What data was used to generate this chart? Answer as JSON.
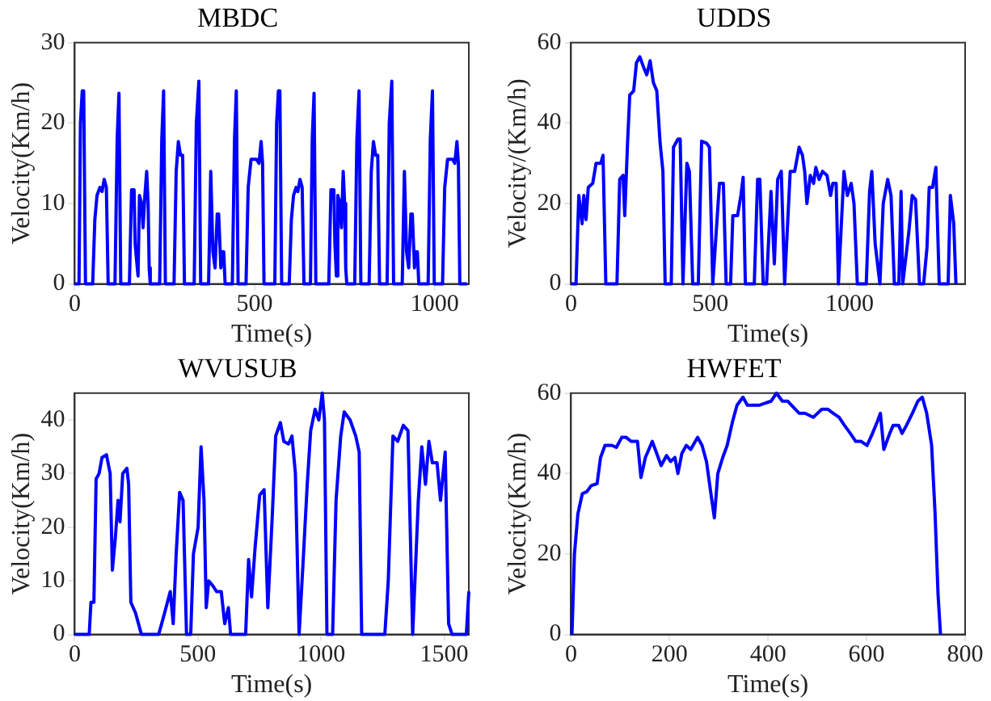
{
  "chart_data": [
    {
      "type": "line",
      "title": "MBDC",
      "xlabel": "Time(s)",
      "ylabel": "Velocity(Km/h)",
      "xlim": [
        0,
        1095
      ],
      "xticks": [
        0,
        500,
        1000
      ],
      "ylim": [
        0,
        30
      ],
      "yticks": [
        0,
        10,
        20,
        30
      ],
      "series": [
        {
          "color": "#0000ff",
          "x": [
            0,
            12,
            16,
            21,
            25,
            30,
            50,
            56,
            62,
            70,
            76,
            82,
            88,
            93,
            112,
            118,
            123,
            128,
            152,
            158,
            165,
            168,
            172,
            176,
            180,
            186,
            190,
            195,
            200,
            204,
            207,
            210,
            236,
            242,
            247,
            252,
            276,
            282,
            288,
            294,
            300,
            305,
            332,
            338,
            345,
            350,
            372,
            378,
            384,
            390,
            396,
            400,
            406,
            410,
            414,
            418,
            438,
            444,
            449,
            454,
            476,
            482,
            490,
            505,
            512,
            518,
            522,
            526,
            556,
            561,
            566,
            570,
            575,
            596,
            602,
            608,
            615,
            620,
            626,
            632,
            637,
            655,
            660,
            665,
            670,
            706,
            712,
            720,
            723,
            727,
            731,
            737,
            741,
            746,
            750,
            753,
            756,
            778,
            784,
            790,
            795,
            818,
            824,
            830,
            836,
            842,
            847,
            868,
            874,
            881,
            886,
            910,
            916,
            922,
            928,
            934,
            938,
            944,
            948,
            952,
            956,
            982,
            988,
            994,
            999,
            1022,
            1028,
            1036,
            1050,
            1056,
            1062,
            1066,
            1070,
            1090
          ],
          "values": [
            0,
            0,
            20,
            24,
            24,
            0,
            0,
            8,
            11,
            12,
            11.5,
            13,
            12,
            0,
            0,
            18,
            23.7,
            0,
            0,
            11.7,
            11.7,
            5,
            3,
            1,
            11,
            10,
            7,
            11,
            14,
            10,
            2,
            0,
            0,
            18,
            24,
            0,
            0,
            14,
            17.7,
            16,
            16,
            0,
            0,
            20,
            25.2,
            0,
            0,
            14,
            4,
            2,
            8.7,
            8.7,
            2,
            4,
            4,
            0,
            0,
            18,
            24,
            0,
            0,
            12,
            15.5,
            15.5,
            15,
            17.7,
            15,
            0,
            0,
            20,
            24,
            24,
            0,
            0,
            8,
            11,
            12,
            11.5,
            13,
            12,
            0,
            0,
            18,
            23.7,
            0,
            0,
            11.7,
            11.7,
            5,
            1,
            11,
            10,
            7,
            14,
            10,
            2,
            0,
            0,
            18,
            24,
            0,
            0,
            14,
            17.7,
            16,
            16,
            0,
            0,
            20,
            25.2,
            0,
            0,
            14,
            4,
            2,
            8.7,
            8.7,
            2,
            4,
            4,
            0,
            0,
            18,
            24,
            0,
            0,
            12,
            15.5,
            15.5,
            15,
            17.7,
            15,
            0,
            0
          ]
        }
      ]
    },
    {
      "type": "line",
      "title": "UDDS",
      "xlabel": "Time(s)",
      "ylabel": "Velocity/(Km/h)",
      "xlim": [
        0,
        1415
      ],
      "xticks": [
        0,
        500,
        1000
      ],
      "ylim": [
        0,
        60
      ],
      "yticks": [
        0,
        20,
        40,
        60
      ],
      "series": [
        {
          "color": "#0000ff",
          "x": [
            0,
            18,
            28,
            40,
            46,
            54,
            62,
            78,
            90,
            107,
            115,
            125,
            165,
            175,
            187,
            193,
            203,
            211,
            225,
            235,
            247,
            260,
            272,
            284,
            296,
            308,
            320,
            330,
            338,
            360,
            368,
            384,
            392,
            402,
            416,
            425,
            437,
            457,
            469,
            487,
            497,
            509,
            533,
            547,
            557,
            573,
            581,
            598,
            610,
            618,
            626,
            658,
            670,
            678,
            690,
            702,
            718,
            730,
            742,
            755,
            767,
            787,
            803,
            819,
            831,
            839,
            847,
            859,
            871,
            879,
            891,
            903,
            919,
            932,
            940,
            952,
            960,
            980,
            992,
            1006,
            1016,
            1028,
            1060,
            1072,
            1080,
            1092,
            1109,
            1121,
            1137,
            1149,
            1161,
            1177,
            1185,
            1191,
            1213,
            1225,
            1237,
            1251,
            1266,
            1278,
            1286,
            1298,
            1310,
            1322,
            1354,
            1362,
            1374,
            1382
          ],
          "values": [
            0,
            0,
            22,
            15,
            22,
            16,
            24,
            25,
            30,
            30,
            32,
            0,
            0,
            26,
            27,
            17,
            35,
            47,
            48,
            55,
            56.5,
            54,
            52,
            55.5,
            50,
            48,
            35,
            28,
            0,
            0,
            34,
            36,
            36,
            0,
            30,
            28,
            0,
            0,
            35.5,
            35,
            34,
            0,
            25,
            25,
            0,
            0,
            17,
            17,
            22,
            26.5,
            0,
            0,
            26,
            26,
            0,
            0,
            23,
            5,
            26,
            28,
            0,
            28,
            28,
            34,
            32,
            28,
            20,
            27,
            25,
            29,
            26,
            28,
            27,
            22,
            25,
            25,
            0,
            28,
            22,
            25,
            20,
            0,
            0,
            23,
            28,
            10,
            0,
            20,
            26,
            22,
            0,
            0,
            23,
            0,
            13,
            22,
            21,
            0,
            0,
            9,
            24,
            24,
            29,
            0,
            0,
            22,
            15,
            0
          ]
        }
      ]
    },
    {
      "type": "line",
      "title": "WVUSUB",
      "xlabel": "Time(s)",
      "ylabel": "Velocity(Km/h)",
      "xlim": [
        0,
        1600
      ],
      "xticks": [
        0,
        500,
        1000,
        1500
      ],
      "ylim": [
        0,
        45
      ],
      "yticks": [
        0,
        10,
        20,
        30,
        40
      ],
      "series": [
        {
          "color": "#0000ff",
          "x": [
            0,
            59,
            66,
            78,
            87,
            99,
            111,
            129,
            144,
            153,
            165,
            176,
            184,
            195,
            212,
            219,
            228,
            247,
            271,
            341,
            365,
            388,
            400,
            412,
            426,
            440,
            454,
            471,
            482,
            501,
            513,
            525,
            534,
            544,
            562,
            576,
            595,
            609,
            624,
            633,
            694,
            706,
            718,
            732,
            751,
            769,
            784,
            802,
            816,
            835,
            849,
            868,
            882,
            896,
            911,
            929,
            944,
            958,
            976,
            991,
            1005,
            1014,
            1024,
            1047,
            1061,
            1080,
            1094,
            1118,
            1141,
            1155,
            1165,
            1259,
            1273,
            1292,
            1311,
            1334,
            1353,
            1372,
            1395,
            1409,
            1424,
            1438,
            1452,
            1471,
            1485,
            1504,
            1518,
            1532,
            1590,
            1600
          ],
          "values": [
            0,
            0,
            6,
            6,
            29,
            30,
            33,
            33.5,
            30,
            12,
            18,
            25,
            21,
            30,
            31,
            28,
            6,
            4,
            0,
            0,
            4,
            8,
            2,
            15,
            26.5,
            25,
            0,
            0,
            15,
            20,
            35,
            25,
            5,
            10,
            9,
            8,
            8,
            2,
            5,
            0,
            0,
            14,
            7,
            16,
            26,
            27,
            5,
            22,
            37,
            39.5,
            36,
            35.5,
            37,
            30,
            0,
            15,
            28,
            38,
            42,
            40,
            45,
            40,
            0,
            0,
            25,
            37,
            41.5,
            40,
            37,
            34,
            0,
            0,
            10,
            37,
            36,
            39,
            38,
            0,
            25,
            35,
            28,
            36,
            32,
            32,
            25,
            34,
            2,
            0,
            0,
            8
          ]
        }
      ]
    },
    {
      "type": "line",
      "title": "HWFET",
      "xlabel": "Time(s)",
      "ylabel": "Velocity(Km/h)",
      "xlim": [
        0,
        800
      ],
      "xticks": [
        0,
        200,
        400,
        600,
        800
      ],
      "ylim": [
        0,
        60
      ],
      "yticks": [
        0,
        20,
        40,
        60
      ],
      "series": [
        {
          "color": "#0000ff",
          "x": [
            2,
            7,
            14,
            23,
            32,
            41,
            53,
            60,
            69,
            83,
            92,
            103,
            112,
            122,
            135,
            142,
            151,
            165,
            177,
            183,
            194,
            202,
            211,
            217,
            225,
            234,
            243,
            257,
            266,
            275,
            284,
            291,
            298,
            308,
            317,
            328,
            337,
            349,
            358,
            372,
            383,
            394,
            406,
            417,
            429,
            440,
            463,
            475,
            492,
            509,
            521,
            532,
            544,
            555,
            567,
            578,
            589,
            601,
            612,
            622,
            628,
            635,
            647,
            654,
            665,
            672,
            681,
            693,
            704,
            713,
            722,
            732,
            739,
            745,
            750
          ],
          "values": [
            0,
            20,
            30,
            35,
            35.5,
            37,
            37.5,
            44,
            47,
            47,
            46.5,
            49,
            49,
            48,
            48,
            39,
            44,
            48,
            44,
            42,
            44.5,
            43,
            44,
            40,
            45,
            47,
            46,
            49,
            47,
            43,
            35,
            29,
            40,
            44,
            47,
            53,
            57,
            59,
            57,
            57,
            57,
            57.5,
            58,
            60,
            58,
            58,
            55,
            55,
            54,
            56,
            56,
            55,
            54,
            52,
            50,
            48,
            48,
            47,
            50,
            53,
            55,
            46,
            50,
            52,
            52,
            50,
            52,
            55,
            58,
            59,
            55,
            47,
            30,
            10,
            0
          ]
        }
      ]
    }
  ]
}
